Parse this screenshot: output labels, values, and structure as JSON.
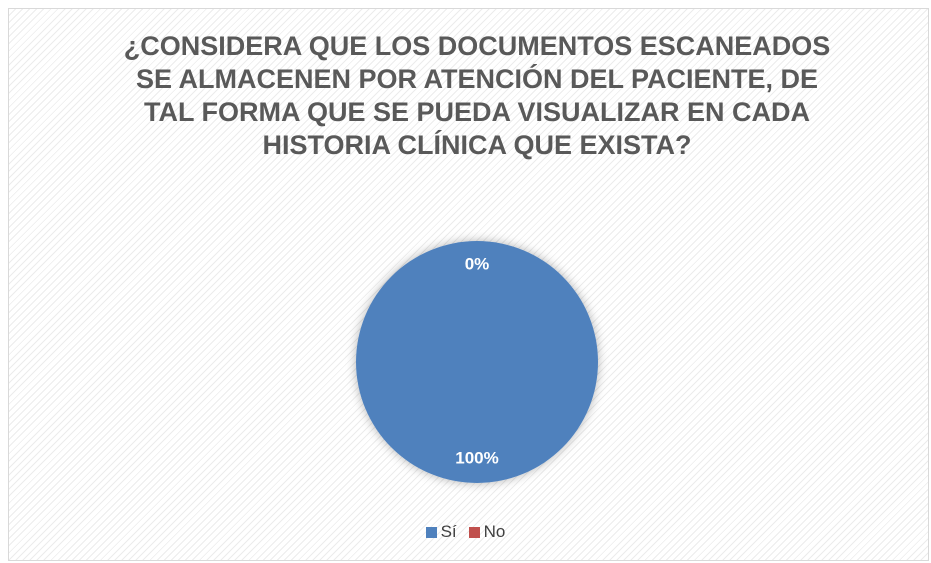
{
  "chart_data": {
    "type": "pie",
    "title": "¿CONSIDERA QUE LOS DOCUMENTOS ESCANEADOS SE ALMACENEN POR ATENCIÓN DEL PACIENTE, DE TAL FORMA QUE SE PUEDA VISUALIZAR EN CADA HISTORIA CLÍNICA QUE EXISTA?",
    "categories": [
      "Sí",
      "No"
    ],
    "values": [
      100,
      0
    ],
    "value_labels": [
      "100%",
      "0%"
    ],
    "colors": [
      "#4f81bd",
      "#c0504d"
    ],
    "legend": "bottom"
  }
}
